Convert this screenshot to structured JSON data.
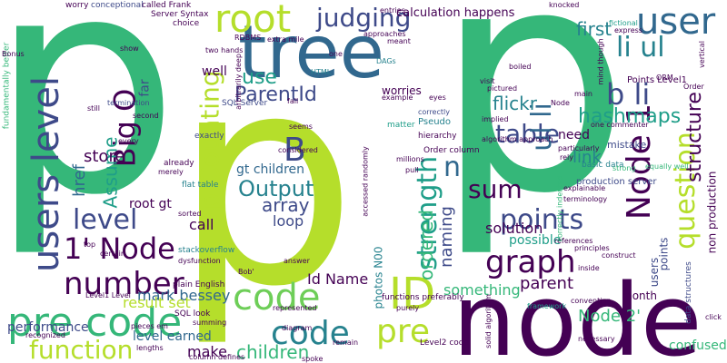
{
  "palette": {
    "dark_purple": "#440154",
    "indigo": "#3e4a89",
    "blue": "#31688e",
    "teal": "#26828e",
    "green_teal": "#1f9e89",
    "green": "#35b779",
    "light_green": "#6ece58",
    "lime": "#b5de2b",
    "yellow": "#fde725"
  },
  "words": [
    {
      "text": "p",
      "color": "#35b779",
      "vertical": false
    },
    {
      "text": "p",
      "color": "#35b779",
      "vertical": false
    },
    {
      "text": "p",
      "color": "#b5de2b",
      "vertical": false
    },
    {
      "text": "node",
      "color": "#440154",
      "vertical": false
    },
    {
      "text": "tree",
      "color": "#31688e",
      "vertical": false
    },
    {
      "text": "root",
      "color": "#b5de2b",
      "vertical": false
    },
    {
      "text": "users level",
      "color": "#3e4a89",
      "vertical": true
    },
    {
      "text": "Node 1",
      "color": "#440154",
      "vertical": true
    },
    {
      "text": "user",
      "color": "#31688e",
      "vertical": false
    },
    {
      "text": "li ul",
      "color": "#26828e",
      "vertical": false
    },
    {
      "text": "question",
      "color": "#b5de2b",
      "vertical": true
    },
    {
      "text": "structure",
      "color": "#440154",
      "vertical": true
    },
    {
      "text": "pre code",
      "color": "#35b779",
      "vertical": false
    },
    {
      "text": "code",
      "color": "#6ece58",
      "vertical": false
    },
    {
      "text": "ID",
      "color": "#b5de2b",
      "vertical": false
    },
    {
      "text": "code",
      "color": "#26828e",
      "vertical": false
    },
    {
      "text": "pre",
      "color": "#b5de2b",
      "vertical": false
    },
    {
      "text": "function",
      "color": "#b5de2b",
      "vertical": false
    },
    {
      "text": "number",
      "color": "#440154",
      "vertical": false
    },
    {
      "text": "1' Node",
      "color": "#440154",
      "vertical": false
    },
    {
      "text": "level",
      "color": "#3e4a89",
      "vertical": false
    },
    {
      "text": "Big O",
      "color": "#440154",
      "vertical": true
    },
    {
      "text": "p Counting",
      "color": "#b5de2b",
      "vertical": true
    },
    {
      "text": "Assume",
      "color": "#1f9e89",
      "vertical": true
    },
    {
      "text": "href",
      "color": "#31688e",
      "vertical": true
    },
    {
      "text": "graph",
      "color": "#440154",
      "vertical": false
    },
    {
      "text": "points",
      "color": "#3e4a89",
      "vertical": false
    },
    {
      "text": "table",
      "color": "#3e4a89",
      "vertical": false
    },
    {
      "text": "b li",
      "color": "#3e4a89",
      "vertical": false
    },
    {
      "text": "strength",
      "color": "#1f9e89",
      "vertical": true
    },
    {
      "text": "ul li",
      "color": "#31688e",
      "vertical": true
    },
    {
      "text": "sum",
      "color": "#440154",
      "vertical": false
    },
    {
      "text": "judging",
      "color": "#3e4a89",
      "vertical": false
    },
    {
      "text": "use",
      "color": "#1f9e89",
      "vertical": false
    },
    {
      "text": "ParentId",
      "color": "#3e4a89",
      "vertical": false
    },
    {
      "text": "B",
      "color": "#3e4a89",
      "vertical": false
    },
    {
      "text": "Output",
      "color": "#26828e",
      "vertical": false
    },
    {
      "text": "array",
      "color": "#3e4a89",
      "vertical": false
    },
    {
      "text": "loop",
      "color": "#3e4a89",
      "vertical": false
    },
    {
      "text": "gt children",
      "color": "#31688e",
      "vertical": false
    },
    {
      "text": "hashmaps",
      "color": "#1f9e89",
      "vertical": false
    },
    {
      "text": "flickr",
      "color": "#26828e",
      "vertical": false
    },
    {
      "text": "first",
      "color": "#26828e",
      "vertical": false
    },
    {
      "text": "link",
      "color": "#26828e",
      "vertical": false
    },
    {
      "text": "solution",
      "color": "#440154",
      "vertical": false
    },
    {
      "text": "possible",
      "color": "#1f9e89",
      "vertical": false
    },
    {
      "text": "parent",
      "color": "#440154",
      "vertical": false
    },
    {
      "text": "Node 2'",
      "color": "#35b779",
      "vertical": false
    },
    {
      "text": "n",
      "color": "#31688e",
      "vertical": false
    },
    {
      "text": "naming",
      "color": "#3e4a89",
      "vertical": true
    },
    {
      "text": "ordered",
      "color": "#35b779",
      "vertical": true
    },
    {
      "text": "something",
      "color": "#35b779",
      "vertical": false
    },
    {
      "text": "Id Name",
      "color": "#440154",
      "vertical": false
    },
    {
      "text": "children",
      "color": "#35b779",
      "vertical": false
    },
    {
      "text": "make",
      "color": "#440154",
      "vertical": false
    },
    {
      "text": "mark bessey",
      "color": "#31688e",
      "vertical": false
    },
    {
      "text": "result set",
      "color": "#b5de2b",
      "vertical": false
    },
    {
      "text": "store",
      "color": "#440154",
      "vertical": false
    },
    {
      "text": "call",
      "color": "#440154",
      "vertical": false
    },
    {
      "text": "root gt",
      "color": "#440154",
      "vertical": false
    },
    {
      "text": "performance",
      "color": "#3e4a89",
      "vertical": false
    },
    {
      "text": "level earned",
      "color": "#31688e",
      "vertical": false
    },
    {
      "text": "well",
      "color": "#440154",
      "vertical": false
    },
    {
      "text": "Points Level1",
      "color": "#440154",
      "vertical": false
    },
    {
      "text": "non production",
      "color": "#440154",
      "vertical": true
    },
    {
      "text": "users",
      "color": "#3e4a89",
      "vertical": true
    },
    {
      "text": "points",
      "color": "#3e4a89",
      "vertical": true
    },
    {
      "text": "confused",
      "color": "#35b779",
      "vertical": false
    },
    {
      "text": "month",
      "color": "#440154",
      "vertical": false
    },
    {
      "text": "need",
      "color": "#440154",
      "vertical": false
    },
    {
      "text": "mistake",
      "color": "#3e4a89",
      "vertical": false
    },
    {
      "text": "calculation happens",
      "color": "#440154",
      "vertical": false
    },
    {
      "text": "worries",
      "color": "#440154",
      "vertical": false
    },
    {
      "text": "Pseudo",
      "color": "#26828e",
      "vertical": false
    },
    {
      "text": "matter",
      "color": "#1f9e89",
      "vertical": false
    },
    {
      "text": "photos N00",
      "color": "#26828e",
      "vertical": true
    },
    {
      "text": "SQL Server",
      "color": "#3e4a89",
      "vertical": false
    },
    {
      "text": "SQL look",
      "color": "#440154",
      "vertical": false
    },
    {
      "text": "stackoverflow",
      "color": "#26828e",
      "vertical": false
    },
    {
      "text": "flat table",
      "color": "#26828e",
      "vertical": false
    },
    {
      "text": "exactly",
      "color": "#3e4a89",
      "vertical": false
    },
    {
      "text": "already",
      "color": "#440154",
      "vertical": false
    },
    {
      "text": "plain English",
      "color": "#440154",
      "vertical": false
    },
    {
      "text": "Level2 code",
      "color": "#440154",
      "vertical": false
    },
    {
      "text": "functions preferably",
      "color": "#440154",
      "vertical": false
    },
    {
      "text": "Order column",
      "color": "#440154",
      "vertical": false
    },
    {
      "text": "basic data",
      "color": "#26828e",
      "vertical": false
    },
    {
      "text": "production server",
      "color": "#3e4a89",
      "vertical": false
    },
    {
      "text": "data structures",
      "color": "#3e4a89",
      "vertical": true
    },
    {
      "text": "fundamentally better",
      "color": "#35b779",
      "vertical": true
    },
    {
      "text": "worry",
      "color": "#440154",
      "vertical": false
    },
    {
      "text": "conceptional",
      "color": "#3e4a89",
      "vertical": false
    },
    {
      "text": "called Frank",
      "color": "#440154",
      "vertical": false
    },
    {
      "text": "Server Syntax",
      "color": "#440154",
      "vertical": false
    },
    {
      "text": "choice",
      "color": "#440154",
      "vertical": false
    },
    {
      "text": "entries",
      "color": "#440154",
      "vertical": false
    },
    {
      "text": "knocked",
      "color": "#440154",
      "vertical": false
    },
    {
      "text": "fictional",
      "color": "#1f9e89",
      "vertical": false
    },
    {
      "text": "express",
      "color": "#440154",
      "vertical": false
    },
    {
      "text": "hierarchy",
      "color": "#440154",
      "vertical": false
    },
    {
      "text": "correctly",
      "color": "#3e4a89",
      "vertical": false
    },
    {
      "text": "implied",
      "color": "#440154",
      "vertical": false
    },
    {
      "text": "visit",
      "color": "#440154",
      "vertical": false
    },
    {
      "text": "pictured",
      "color": "#440154",
      "vertical": false
    },
    {
      "text": "boiled",
      "color": "#440154",
      "vertical": false
    },
    {
      "text": "approaches",
      "color": "#440154",
      "vertical": false
    },
    {
      "text": "meant",
      "color": "#440154",
      "vertical": false
    },
    {
      "text": "DAGs",
      "color": "#26828e",
      "vertical": false
    },
    {
      "text": "HTML",
      "color": "#26828e",
      "vertical": false
    },
    {
      "text": "RDBMS",
      "color": "#440154",
      "vertical": false
    },
    {
      "text": "extra mile",
      "color": "#440154",
      "vertical": false
    },
    {
      "text": "two hands",
      "color": "#440154",
      "vertical": false
    },
    {
      "text": "one",
      "color": "#440154",
      "vertical": false
    },
    {
      "text": "termination",
      "color": "#3e4a89",
      "vertical": false
    },
    {
      "text": "second",
      "color": "#440154",
      "vertical": false
    },
    {
      "text": "far",
      "color": "#3e4a89",
      "vertical": true
    },
    {
      "text": "every",
      "color": "#440154",
      "vertical": false
    },
    {
      "text": "seems",
      "color": "#440154",
      "vertical": false
    },
    {
      "text": "considered",
      "color": "#440154",
      "vertical": false
    },
    {
      "text": "millions",
      "color": "#440154",
      "vertical": false
    },
    {
      "text": "pull",
      "color": "#440154",
      "vertical": false
    },
    {
      "text": "rely",
      "color": "#440154",
      "vertical": false
    },
    {
      "text": "explainable",
      "color": "#440154",
      "vertical": false
    },
    {
      "text": "particularly",
      "color": "#440154",
      "vertical": false
    },
    {
      "text": "strong",
      "color": "#35b779",
      "vertical": false
    },
    {
      "text": "equally well",
      "color": "#35b779",
      "vertical": false
    },
    {
      "text": "references",
      "color": "#440154",
      "vertical": false
    },
    {
      "text": "principles",
      "color": "#440154",
      "vertical": false
    },
    {
      "text": "construct",
      "color": "#440154",
      "vertical": false
    },
    {
      "text": "inside",
      "color": "#440154",
      "vertical": false
    },
    {
      "text": "convention",
      "color": "#440154",
      "vertical": false
    },
    {
      "text": "framework",
      "color": "#1f9e89",
      "vertical": false
    },
    {
      "text": "necessary",
      "color": "#440154",
      "vertical": false
    },
    {
      "text": "click",
      "color": "#440154",
      "vertical": false
    },
    {
      "text": "sorted",
      "color": "#440154",
      "vertical": false
    },
    {
      "text": "certain",
      "color": "#440154",
      "vertical": false
    },
    {
      "text": "merely",
      "color": "#440154",
      "vertical": false
    },
    {
      "text": "diagram",
      "color": "#440154",
      "vertical": false
    },
    {
      "text": "represented",
      "color": "#440154",
      "vertical": false
    },
    {
      "text": "spoke",
      "color": "#440154",
      "vertical": false
    },
    {
      "text": "remain",
      "color": "#440154",
      "vertical": false
    },
    {
      "text": "purely",
      "color": "#440154",
      "vertical": false
    },
    {
      "text": "recognized",
      "color": "#440154",
      "vertical": false
    },
    {
      "text": "lengths",
      "color": "#440154",
      "vertical": false
    },
    {
      "text": "pieces em",
      "color": "#440154",
      "vertical": false
    },
    {
      "text": "column defines",
      "color": "#440154",
      "vertical": false
    },
    {
      "text": "Bonus",
      "color": "#440154",
      "vertical": false
    },
    {
      "text": "show",
      "color": "#440154",
      "vertical": false
    },
    {
      "text": "still",
      "color": "#440154",
      "vertical": false
    },
    {
      "text": "Bob'",
      "color": "#440154",
      "vertical": false
    },
    {
      "text": "answer",
      "color": "#440154",
      "vertical": false
    },
    {
      "text": "fall",
      "color": "#440154",
      "vertical": false
    },
    {
      "text": "ORM",
      "color": "#440154",
      "vertical": false
    },
    {
      "text": "Order",
      "color": "#440154",
      "vertical": false
    },
    {
      "text": "one commenter",
      "color": "#440154",
      "vertical": false
    },
    {
      "text": "solid algorithm",
      "color": "#440154",
      "vertical": true
    },
    {
      "text": "correctly indented",
      "color": "#35b779",
      "vertical": true
    },
    {
      "text": "accessed randomly",
      "color": "#440154",
      "vertical": true
    },
    {
      "text": "arbitrarily deep",
      "color": "#440154",
      "vertical": true
    },
    {
      "text": "mind though",
      "color": "#440154",
      "vertical": true
    },
    {
      "text": "dysfunction",
      "color": "#440154",
      "vertical": false
    },
    {
      "text": "summing",
      "color": "#440154",
      "vertical": false
    },
    {
      "text": "Level1 Level",
      "color": "#440154",
      "vertical": false
    },
    {
      "text": "algorithm approach",
      "color": "#440154",
      "vertical": false
    },
    {
      "text": "terminology",
      "color": "#440154",
      "vertical": false
    },
    {
      "text": "main",
      "color": "#440154",
      "vertical": false
    },
    {
      "text": "Node",
      "color": "#440154",
      "vertical": false
    },
    {
      "text": "top",
      "color": "#440154",
      "vertical": false
    },
    {
      "text": "vertical",
      "color": "#440154",
      "vertical": true
    },
    {
      "text": "example",
      "color": "#440154",
      "vertical": false
    },
    {
      "text": "eyes",
      "color": "#440154",
      "vertical": false
    }
  ]
}
